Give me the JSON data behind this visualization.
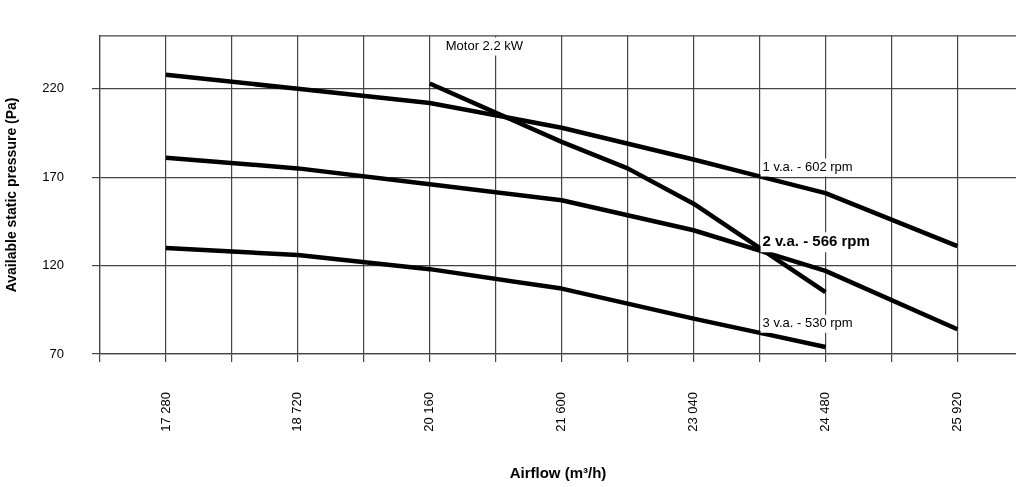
{
  "chart_data": {
    "type": "line",
    "xlabel": "Airflow (m³/h)",
    "ylabel": "Available static pressure (Pa)",
    "xlim": [
      16560,
      26560
    ],
    "ylim": [
      70,
      250
    ],
    "xticks": [
      {
        "value": 16560,
        "label": null
      },
      {
        "value": 17280,
        "label": "17 280"
      },
      {
        "value": 18000,
        "label": null
      },
      {
        "value": 18720,
        "label": "18 720"
      },
      {
        "value": 19440,
        "label": null
      },
      {
        "value": 20160,
        "label": "20 160"
      },
      {
        "value": 20880,
        "label": null
      },
      {
        "value": 21600,
        "label": "21 600"
      },
      {
        "value": 22320,
        "label": null
      },
      {
        "value": 23040,
        "label": "23 040"
      },
      {
        "value": 23760,
        "label": null
      },
      {
        "value": 24480,
        "label": "24 480"
      },
      {
        "value": 25200,
        "label": null
      },
      {
        "value": 25920,
        "label": "25 920"
      }
    ],
    "yticks": [
      70,
      120,
      170,
      220
    ],
    "grid": true,
    "legend": false,
    "marker": "none",
    "line_style": "solid",
    "series": [
      {
        "name": "Motor 2.2 kW",
        "color": "#000000",
        "x": [
          20160,
          21600,
          22320,
          23040,
          23760,
          24480
        ],
        "values": [
          223,
          190,
          175,
          155,
          130,
          105
        ]
      },
      {
        "name": "1 v.a. - 602 rpm",
        "color": "#000000",
        "x": [
          17280,
          18720,
          20160,
          21600,
          23040,
          24480,
          25920
        ],
        "values": [
          228,
          220,
          212,
          198,
          180,
          161,
          131
        ]
      },
      {
        "name": "2 v.a. - 566 rpm",
        "color": "#000000",
        "x": [
          17280,
          18720,
          20160,
          21600,
          23040,
          24480,
          25920
        ],
        "values": [
          181,
          175,
          166,
          157,
          140,
          117,
          84
        ]
      },
      {
        "name": "3 v.a. - 530 rpm",
        "color": "#000000",
        "x": [
          17280,
          18720,
          20160,
          21600,
          23040,
          24480
        ],
        "values": [
          130,
          126,
          118,
          107,
          90,
          74
        ]
      }
    ]
  }
}
